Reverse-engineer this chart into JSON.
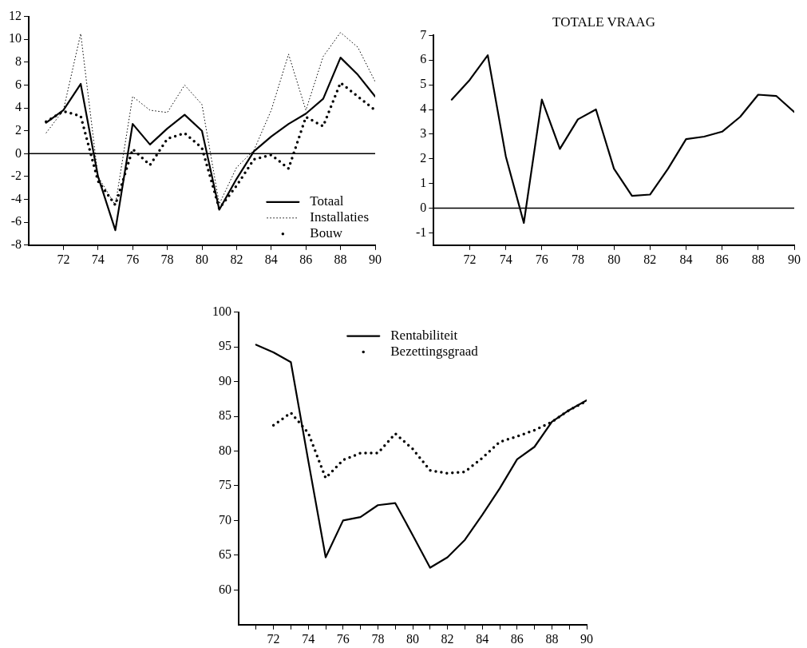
{
  "chart_data": [
    {
      "type": "line",
      "x": [
        71,
        72,
        73,
        74,
        75,
        76,
        77,
        78,
        79,
        80,
        81,
        82,
        83,
        84,
        85,
        86,
        87,
        88,
        89,
        90
      ],
      "xlim": [
        70,
        90
      ],
      "xticks": [
        72,
        74,
        76,
        78,
        80,
        82,
        84,
        86,
        88,
        90
      ],
      "ylim": [
        -8,
        12
      ],
      "yticks": [
        -8,
        -6,
        -4,
        -2,
        0,
        2,
        4,
        6,
        8,
        10,
        12
      ],
      "grid": false,
      "legend": "bottom right",
      "ref_lines": [
        {
          "axis": "y",
          "value": 0,
          "color": "#000000"
        }
      ],
      "series": [
        {
          "name": "Totaal",
          "color": "#000000",
          "line_style": "solid",
          "values": [
            2.7,
            3.8,
            6.1,
            -2,
            -6.7,
            2.6,
            0.8,
            2.2,
            3.4,
            2.0,
            -4.9,
            -2.2,
            0.2,
            1.5,
            2.6,
            3.5,
            4.8,
            8.4,
            6.9,
            5.0
          ]
        },
        {
          "name": "Installaties",
          "color": "#000000",
          "line_style": "dashed",
          "values": [
            1.8,
            3.8,
            10.5,
            -2,
            -4.5,
            5.0,
            3.8,
            3.6,
            6.0,
            4.3,
            -4.4,
            -1.2,
            0.3,
            3.8,
            8.7,
            3.8,
            8.5,
            10.6,
            9.3,
            6.3
          ]
        },
        {
          "name": "Bouw",
          "color": "#000000",
          "line_style": "dotted",
          "values": [
            2.8,
            3.7,
            3.3,
            -2.4,
            -4.5,
            0.4,
            -1.0,
            1.3,
            1.8,
            0.5,
            -4.8,
            -2.8,
            -0.5,
            -0.1,
            -1.3,
            3.2,
            2.4,
            6.2,
            5.0,
            3.8
          ]
        }
      ]
    },
    {
      "type": "line",
      "title": "TOTALE VRAAG",
      "x": [
        71,
        72,
        73,
        74,
        75,
        76,
        77,
        78,
        79,
        80,
        81,
        82,
        83,
        84,
        85,
        86,
        87,
        88,
        89,
        90
      ],
      "xlim": [
        70,
        90
      ],
      "xticks": [
        72,
        74,
        76,
        78,
        80,
        82,
        84,
        86,
        88,
        90
      ],
      "ylim": [
        -1.5,
        7
      ],
      "yticks": [
        -1,
        0,
        1,
        2,
        3,
        4,
        5,
        6,
        7
      ],
      "grid": false,
      "legend": false,
      "ref_lines": [
        {
          "axis": "y",
          "value": 0,
          "color": "#000000"
        }
      ],
      "series": [
        {
          "color": "#000000",
          "line_style": "solid",
          "values": [
            4.4,
            5.2,
            6.2,
            2.1,
            -0.6,
            4.4,
            2.4,
            3.6,
            4.0,
            1.6,
            0.5,
            0.55,
            1.6,
            2.8,
            2.9,
            3.1,
            3.7,
            4.6,
            4.55,
            3.9
          ]
        }
      ]
    },
    {
      "type": "line",
      "x": [
        71,
        72,
        73,
        74,
        75,
        76,
        77,
        78,
        79,
        80,
        81,
        82,
        83,
        84,
        85,
        86,
        87,
        88,
        89,
        90
      ],
      "xlim": [
        70,
        90
      ],
      "xticks": [
        {
          "value": 71,
          "label": null
        },
        72,
        {
          "value": 73,
          "label": null
        },
        74,
        {
          "value": 75,
          "label": null
        },
        76,
        {
          "value": 77,
          "label": null
        },
        78,
        {
          "value": 79,
          "label": null
        },
        80,
        {
          "value": 81,
          "label": null
        },
        82,
        {
          "value": 83,
          "label": null
        },
        84,
        {
          "value": 85,
          "label": null
        },
        86,
        {
          "value": 87,
          "label": null
        },
        88,
        {
          "value": 89,
          "label": null
        },
        90
      ],
      "ylim": [
        55,
        100
      ],
      "yticks": [
        60,
        65,
        70,
        75,
        80,
        85,
        90,
        95,
        100
      ],
      "grid": false,
      "legend": "top",
      "series": [
        {
          "name": "Rentabiliteit",
          "color": "#000000",
          "line_style": "solid",
          "values": [
            95.3,
            94.2,
            92.8,
            78.6,
            64.7,
            70.0,
            70.5,
            72.2,
            72.5,
            67.9,
            63.2,
            64.7,
            67.2,
            70.8,
            74.6,
            78.8,
            80.6,
            84.2,
            85.9,
            87.3
          ]
        },
        {
          "name": "Bezettingsgraad",
          "color": "#000000",
          "line_style": "dotted",
          "values": [
            null,
            83.7,
            85.5,
            82.6,
            76.1,
            78.7,
            79.7,
            79.7,
            82.5,
            80.3,
            77.2,
            76.8,
            77.0,
            79.0,
            81.3,
            82.1,
            83.0,
            84.2,
            85.9,
            87.2
          ]
        }
      ]
    }
  ]
}
